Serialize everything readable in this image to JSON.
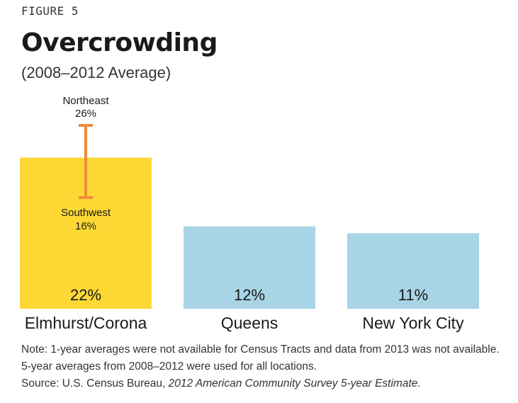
{
  "figure_label": "FIGURE 5",
  "chart_data": {
    "type": "bar",
    "title": "Overcrowding",
    "subtitle": "(2008–2012 Average)",
    "categories": [
      "Elmhurst/Corona",
      "Queens",
      "New York City"
    ],
    "values": [
      22,
      12,
      11
    ],
    "value_labels": [
      "22%",
      "12%",
      "11%"
    ],
    "unit": "%",
    "ylim": [
      0,
      30
    ],
    "colors": [
      "#fdd835",
      "#a8d4e6",
      "#a8d4e6"
    ],
    "range_marker": {
      "category": "Elmhurst/Corona",
      "color": "#f08a3a",
      "high": {
        "label": "Northeast",
        "value": 26,
        "value_label": "26%"
      },
      "low": {
        "label": "Southwest",
        "value": 16,
        "value_label": "16%"
      }
    },
    "grid": false,
    "legend": "none"
  },
  "notes": {
    "note": "Note: 1-year averages were not available for Census Tracts and data from 2013 was not available. 5-year averages from 2008–2012 were used for all locations.",
    "source_prefix": "Source: U.S. Census Bureau, ",
    "source_title": "2012 American Community Survey 5-year Estimate."
  }
}
